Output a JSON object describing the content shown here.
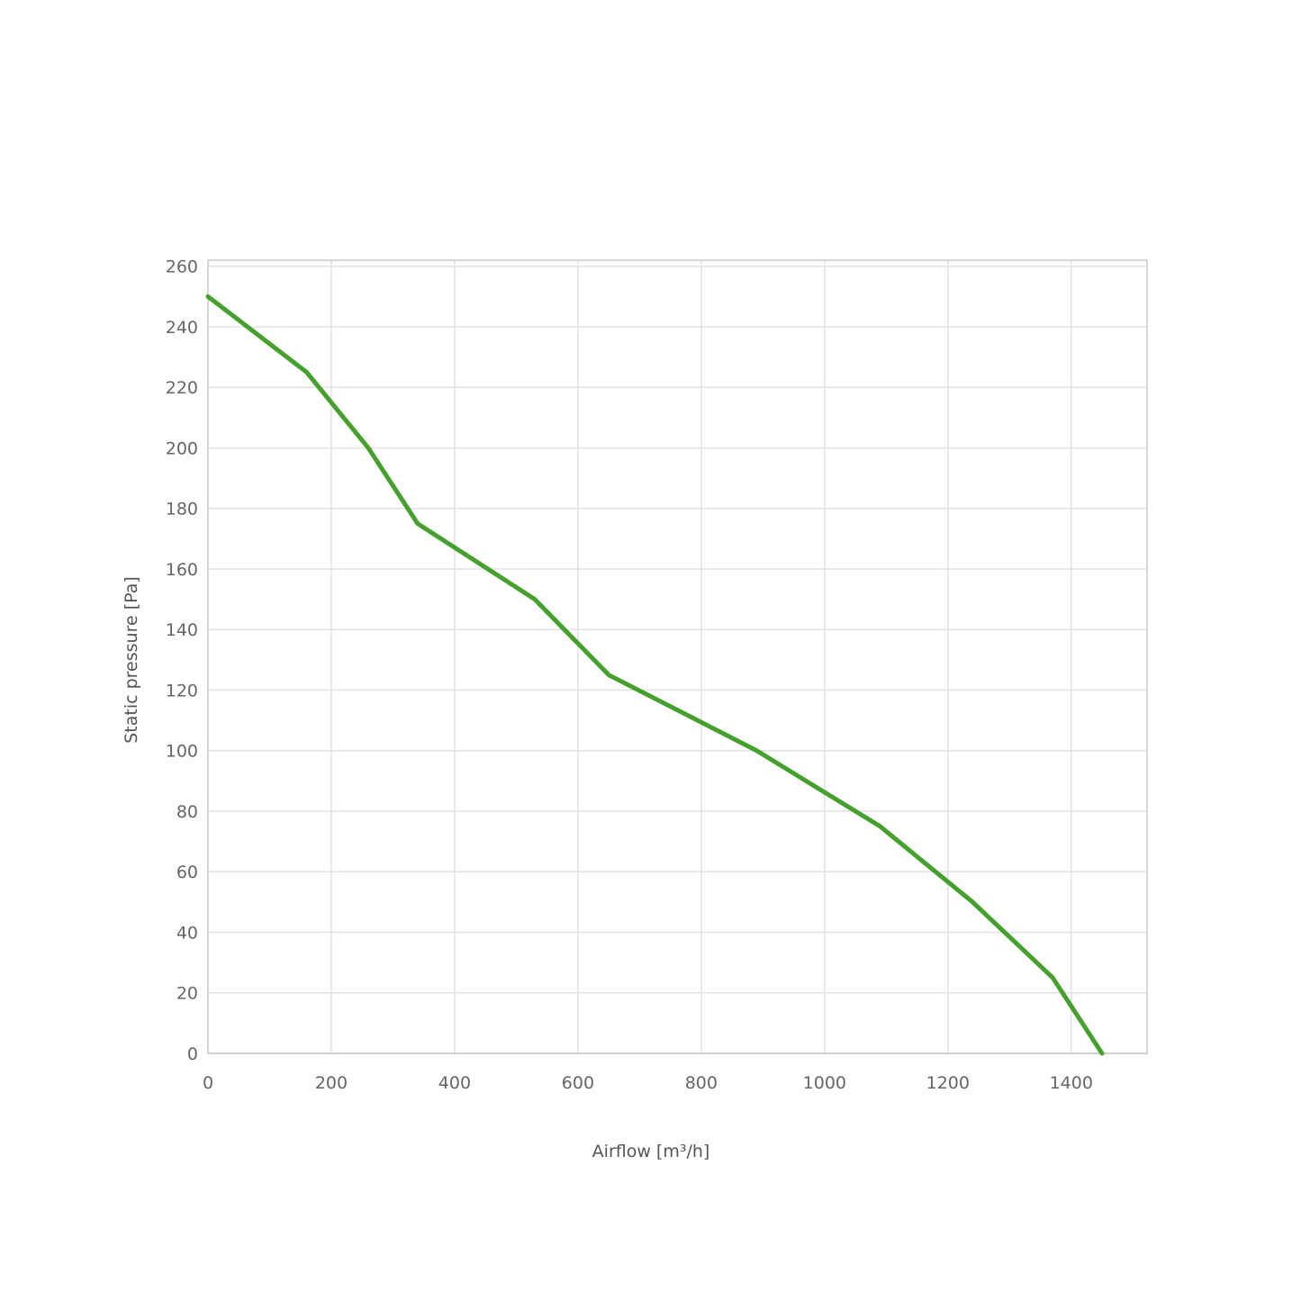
{
  "chart_data": {
    "type": "line",
    "title": "",
    "xlabel": "Airflow [m³/h]",
    "ylabel": "Static pressure [Pa]",
    "xlim": [
      0,
      1523
    ],
    "ylim": [
      0,
      262
    ],
    "x_ticks": [
      0,
      200,
      400,
      600,
      800,
      1000,
      1200,
      1400
    ],
    "y_ticks": [
      0,
      20,
      40,
      60,
      80,
      100,
      120,
      140,
      160,
      180,
      200,
      220,
      240,
      260
    ],
    "grid": true,
    "legend": "none",
    "series": [
      {
        "color": "#45a02e",
        "x": [
          0,
          160,
          260,
          340,
          530,
          650,
          890,
          1090,
          1240,
          1370,
          1450
        ],
        "y": [
          250,
          225,
          200,
          175,
          150,
          125,
          100,
          75,
          50,
          25,
          0
        ]
      }
    ]
  }
}
